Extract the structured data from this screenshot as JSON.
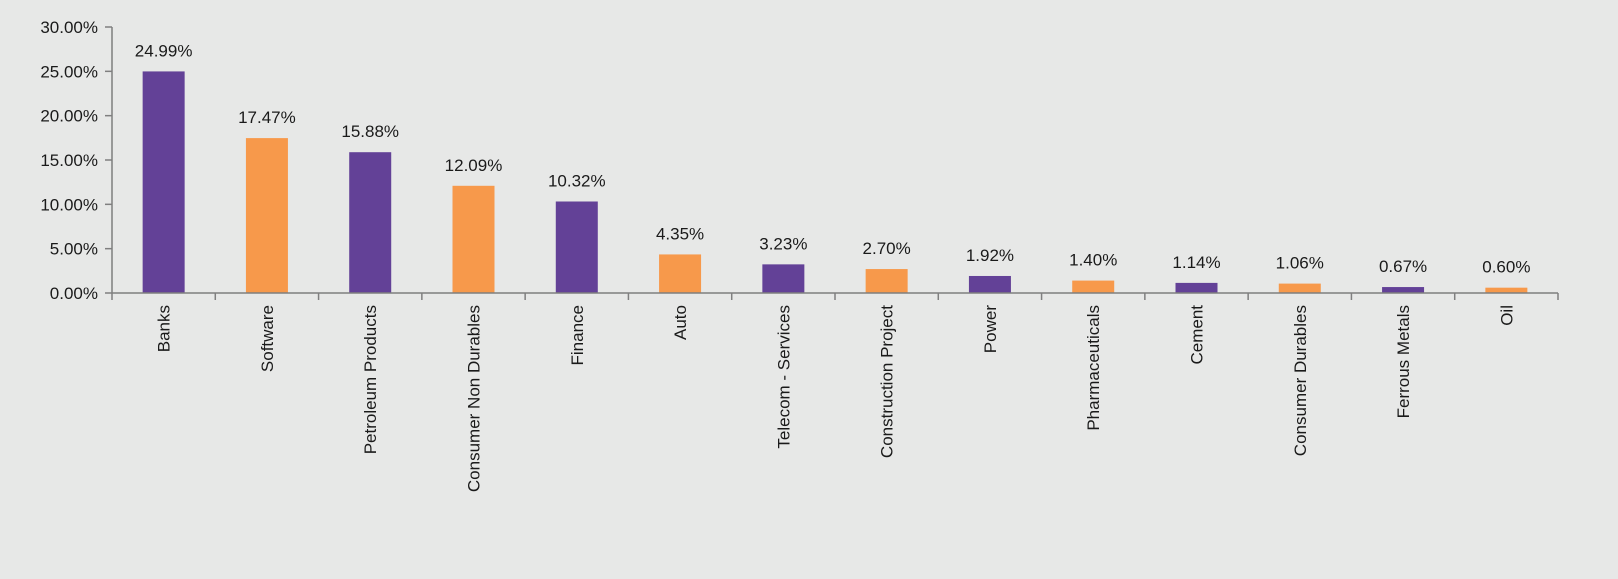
{
  "chart_data": {
    "type": "bar",
    "title": "",
    "xlabel": "",
    "ylabel": "",
    "ylim": [
      0,
      30
    ],
    "y_ticks": [
      "0.00%",
      "5.00%",
      "10.00%",
      "15.00%",
      "20.00%",
      "25.00%",
      "30.00%"
    ],
    "grid": false,
    "categories": [
      "Banks",
      "Software",
      "Petroleum Products",
      "Consumer Non Durables",
      "Finance",
      "Auto",
      "Telecom - Services",
      "Construction Project",
      "Power",
      "Pharmaceuticals",
      "Cement",
      "Consumer Durables",
      "Ferrous Metals",
      "Oil"
    ],
    "values": [
      24.99,
      17.47,
      15.88,
      12.09,
      10.32,
      4.35,
      3.23,
      2.7,
      1.92,
      1.4,
      1.14,
      1.06,
      0.67,
      0.6
    ],
    "value_labels": [
      "24.99%",
      "17.47%",
      "15.88%",
      "12.09%",
      "10.32%",
      "4.35%",
      "3.23%",
      "2.70%",
      "1.92%",
      "1.40%",
      "1.14%",
      "1.06%",
      "0.67%",
      "0.60%"
    ],
    "colors": {
      "purple": "#634197",
      "orange": "#f7994b",
      "axis": "#7f7f7f",
      "background": "#e7e8e7"
    },
    "bar_color_pattern": [
      "purple",
      "orange"
    ]
  }
}
